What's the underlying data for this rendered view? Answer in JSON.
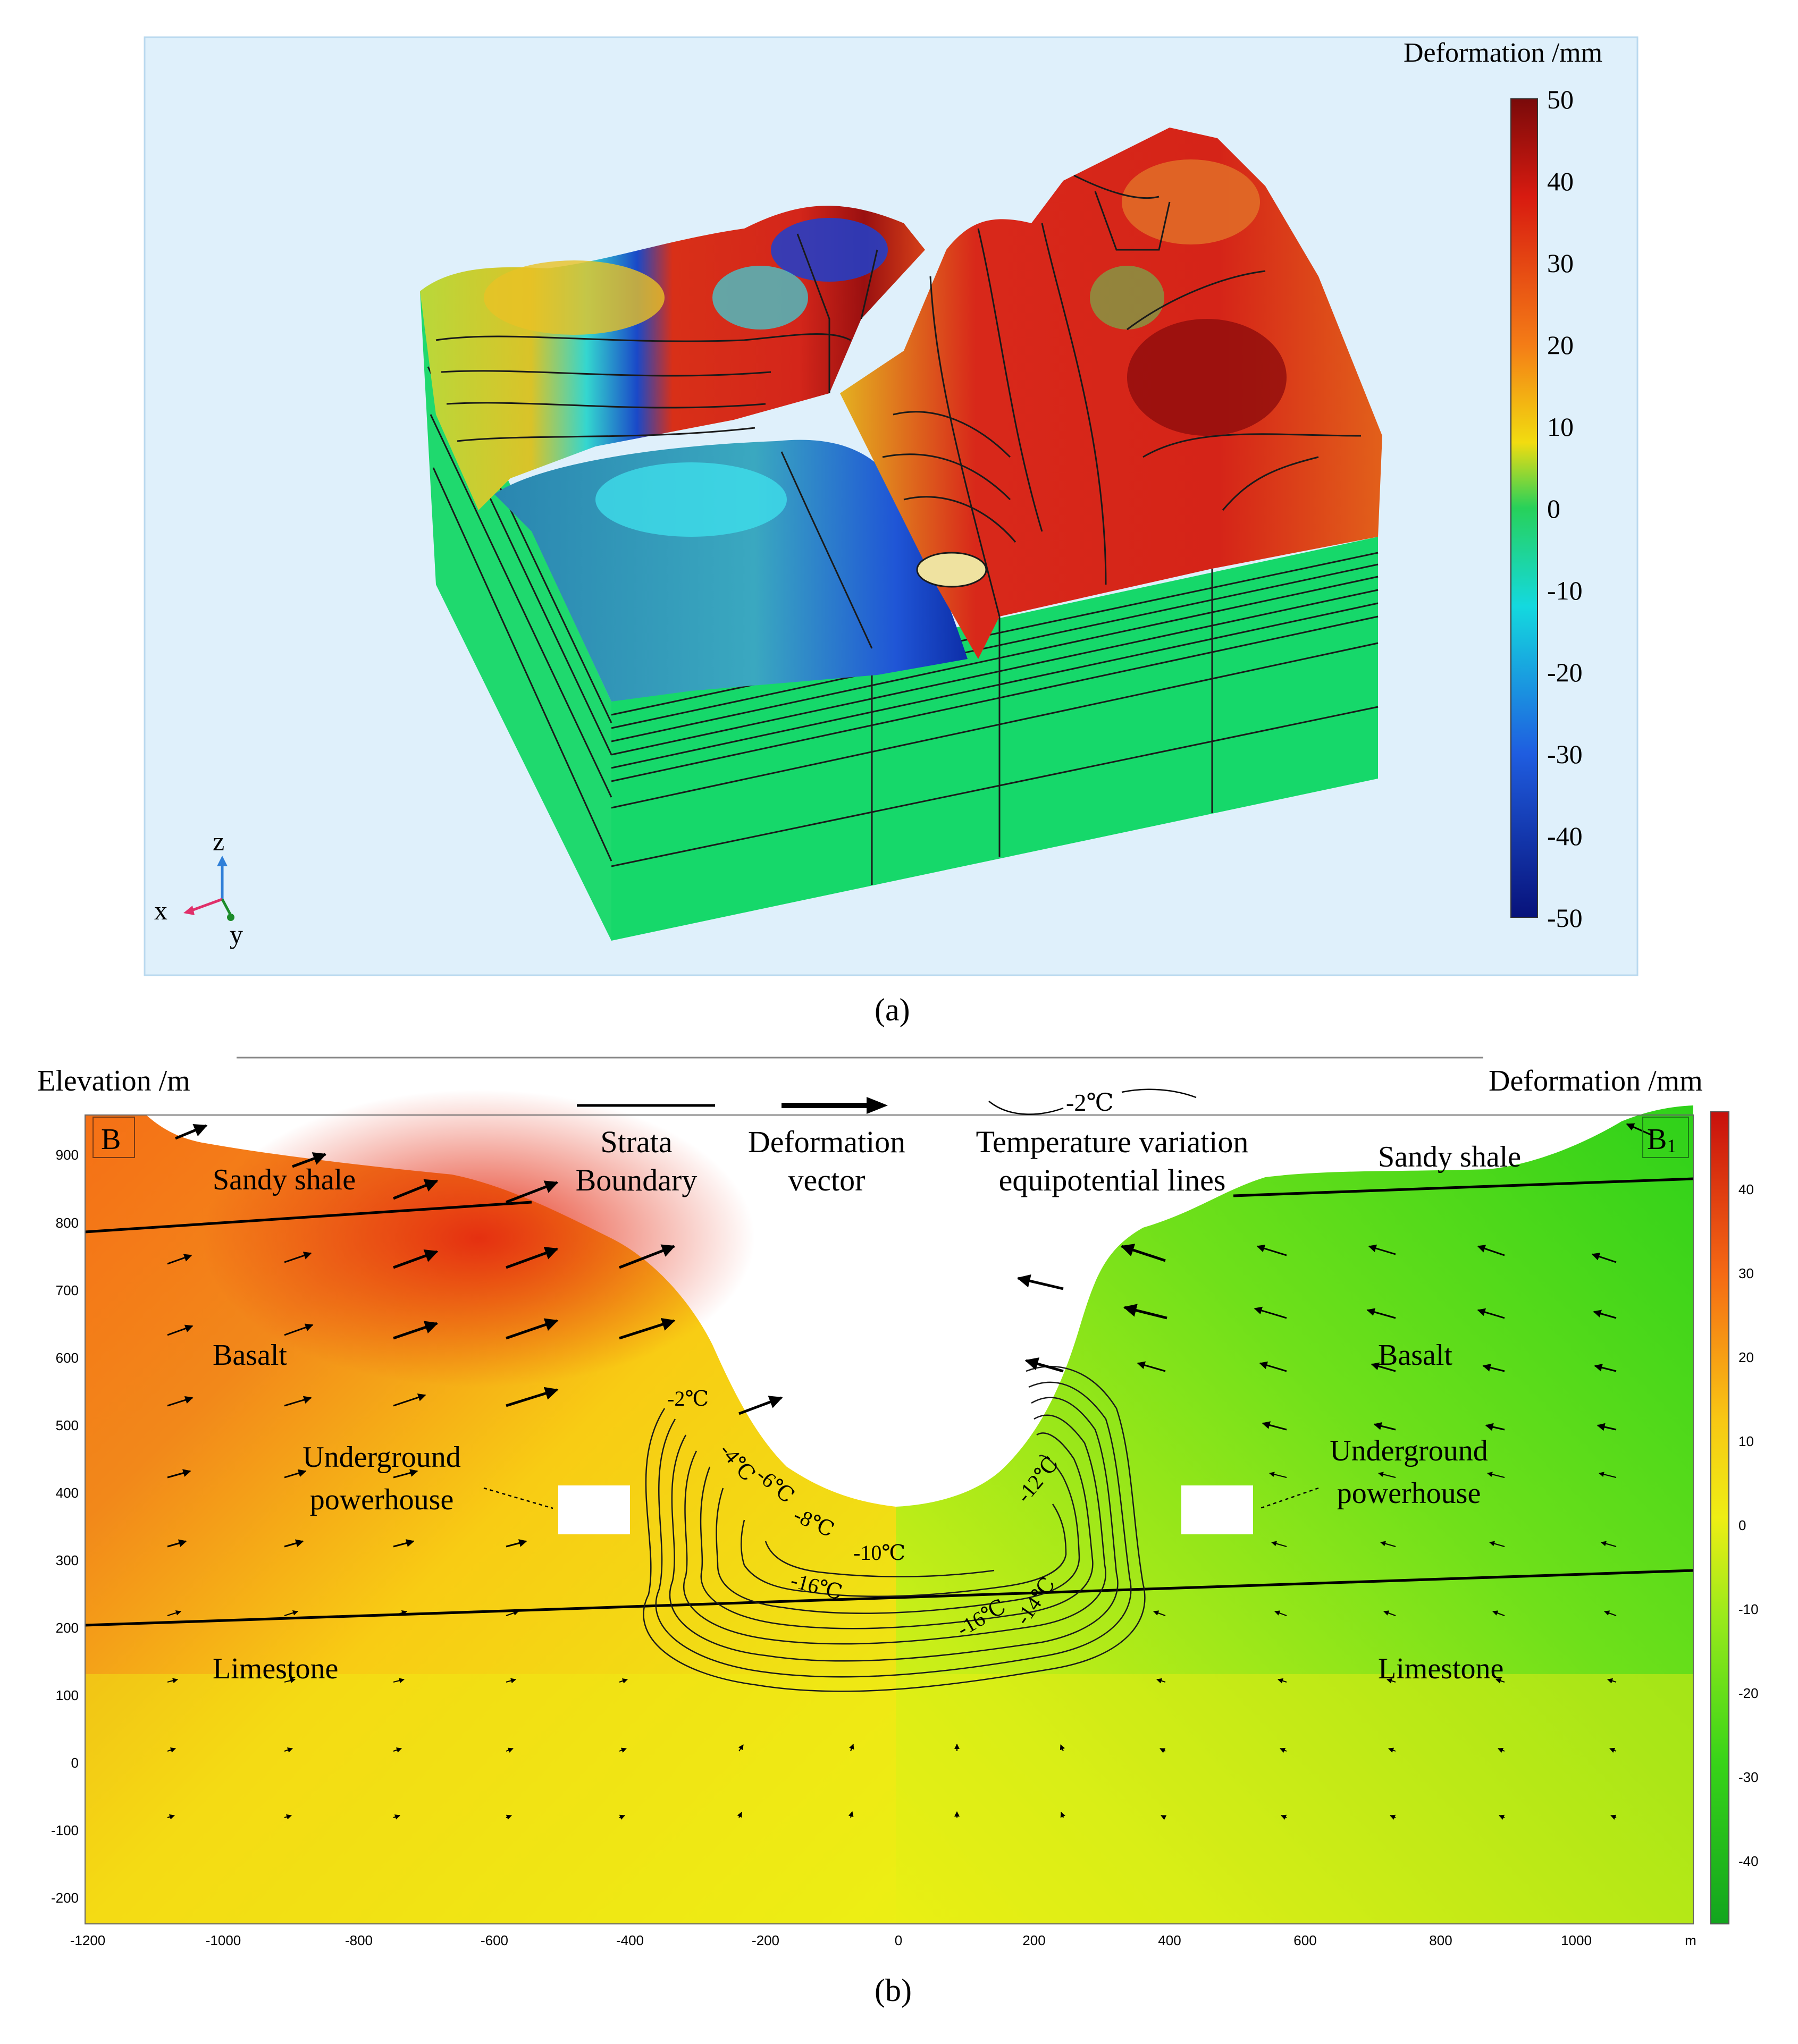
{
  "panel_a": {
    "caption": "(a)",
    "colorbar": {
      "title": "Deformation /mm",
      "ticks": [
        "50",
        "40",
        "30",
        "20",
        "10",
        "0",
        "-10",
        "-20",
        "-30",
        "-40",
        "-50"
      ]
    },
    "axes": {
      "x": "x",
      "y": "y",
      "z": "z"
    }
  },
  "panel_b": {
    "caption": "(b)",
    "y_axis_title": "Elevation /m",
    "colorbar_title": "Deformation /mm",
    "colorbar_ticks": [
      "40",
      "30",
      "20",
      "10",
      "0",
      "-10",
      "-20",
      "-30",
      "-40"
    ],
    "left_label": "B",
    "right_label": "B",
    "right_label_sub": "1",
    "y_ticks": [
      "900",
      "800",
      "700",
      "600",
      "500",
      "400",
      "300",
      "200",
      "100",
      "0",
      "-100",
      "-200"
    ],
    "x_ticks": [
      "-1200",
      "-1000",
      "-800",
      "-600",
      "-400",
      "-200",
      "0",
      "200",
      "400",
      "600",
      "800",
      "1000"
    ],
    "x_unit": "m",
    "legend": {
      "strata_line1": "Strata",
      "strata_line2": "Boundary",
      "vector_line1": "Deformation",
      "vector_line2": "vector",
      "temp_sample": "-2℃",
      "temp_line1": "Temperature variation",
      "temp_line2": "equipotential lines"
    },
    "layers_left": {
      "sandy_shale": "Sandy shale",
      "basalt": "Basalt",
      "limestone": "Limestone"
    },
    "layers_right": {
      "sandy_shale": "Sandy shale",
      "basalt": "Basalt",
      "limestone": "Limestone"
    },
    "powerhouse_left_line1": "Underground",
    "powerhouse_left_line2": "powerhouse",
    "powerhouse_right_line1": "Underground",
    "powerhouse_right_line2": "powerhouse",
    "contour_labels": [
      "-2℃",
      "-4℃",
      "-6℃",
      "-8℃",
      "-10℃",
      "-16℃",
      "-12℃",
      "-16℃",
      "-14℃"
    ]
  },
  "colors": {
    "panel_a_bg": "#dff0fb",
    "red": "#d42a12",
    "green": "#2ec91e",
    "yellow": "#f5e614"
  }
}
